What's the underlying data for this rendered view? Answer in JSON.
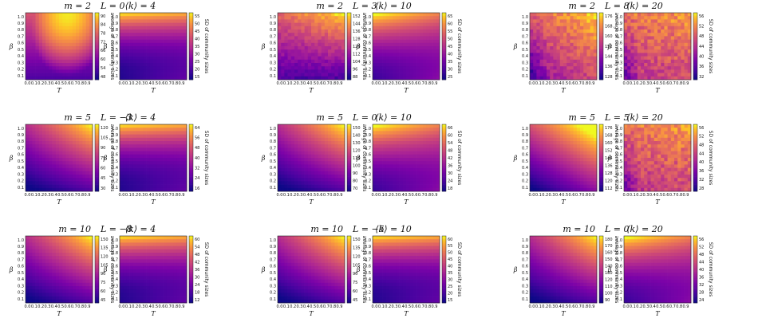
{
  "figure": {
    "x_ticks": [
      "0.0",
      "0.1",
      "0.2",
      "0.3",
      "0.4",
      "0.5",
      "0.6",
      "0.7",
      "0.8",
      "0.9"
    ],
    "y_ticks": [
      "0.1",
      "0.2",
      "0.3",
      "0.4",
      "0.5",
      "0.6",
      "0.7",
      "0.8",
      "0.9",
      "1.0"
    ],
    "xlabel": "T",
    "ylabel": "β",
    "avg_colorbar_label": "average of community sizes",
    "sd_colorbar_label": "SD of community sizes"
  },
  "chart_data": [
    {
      "type": "heatmap",
      "panel": "average",
      "title_left": "m = 2",
      "title_right": "L = 0",
      "cbar_ticks": [
        "48",
        "54",
        "60",
        "66",
        "72",
        "78",
        "84",
        "90"
      ],
      "pattern": "peak-top-center"
    },
    {
      "type": "heatmap",
      "panel": "sd",
      "title": "⟨k⟩ = 4",
      "cbar_ticks": [
        "15",
        "20",
        "25",
        "30",
        "35",
        "40",
        "45",
        "50",
        "55"
      ],
      "pattern": "top-band"
    },
    {
      "type": "heatmap",
      "panel": "average",
      "title_left": "m = 2",
      "title_right": "L = 3",
      "cbar_ticks": [
        "88",
        "96",
        "104",
        "112",
        "120",
        "128",
        "136",
        "144",
        "152"
      ],
      "pattern": "noisy-top"
    },
    {
      "type": "heatmap",
      "panel": "sd",
      "title": "⟨k⟩ = 10",
      "cbar_ticks": [
        "25",
        "30",
        "35",
        "40",
        "45",
        "50",
        "55",
        "60",
        "65"
      ],
      "pattern": "top-left-band"
    },
    {
      "type": "heatmap",
      "panel": "average",
      "title_left": "m = 2",
      "title_right": "L = 8",
      "cbar_ticks": [
        "128",
        "136",
        "144",
        "152",
        "160",
        "168",
        "176"
      ],
      "pattern": "noisy-high"
    },
    {
      "type": "heatmap",
      "panel": "sd",
      "title": "⟨k⟩ = 20",
      "cbar_ticks": [
        "32",
        "36",
        "40",
        "44",
        "48",
        "52",
        "56"
      ],
      "pattern": "noisy-mid"
    },
    {
      "type": "heatmap",
      "panel": "average",
      "title_left": "m = 5",
      "title_right": "L = −3",
      "cbar_ticks": [
        "30",
        "45",
        "60",
        "75",
        "90",
        "105",
        "120"
      ],
      "pattern": "top-right"
    },
    {
      "type": "heatmap",
      "panel": "sd",
      "title": "⟨k⟩ = 4",
      "cbar_ticks": [
        "16",
        "24",
        "32",
        "40",
        "48",
        "56",
        "64"
      ],
      "pattern": "top-band"
    },
    {
      "type": "heatmap",
      "panel": "average",
      "title_left": "m = 5",
      "title_right": "L = 0",
      "cbar_ticks": [
        "70",
        "80",
        "90",
        "100",
        "110",
        "120",
        "130",
        "140",
        "150"
      ],
      "pattern": "top-right"
    },
    {
      "type": "heatmap",
      "panel": "sd",
      "title": "⟨k⟩ = 10",
      "cbar_ticks": [
        "18",
        "24",
        "30",
        "36",
        "42",
        "48",
        "54",
        "60",
        "66"
      ],
      "pattern": "top-left-band"
    },
    {
      "type": "heatmap",
      "panel": "average",
      "title_left": "m = 5",
      "title_right": "L = 5",
      "cbar_ticks": [
        "112",
        "120",
        "128",
        "136",
        "144",
        "152",
        "160",
        "168",
        "176"
      ],
      "pattern": "top-right-high"
    },
    {
      "type": "heatmap",
      "panel": "sd",
      "title": "⟨k⟩ = 20",
      "cbar_ticks": [
        "28",
        "32",
        "36",
        "40",
        "44",
        "48",
        "52",
        "56"
      ],
      "pattern": "noisy-mid"
    },
    {
      "type": "heatmap",
      "panel": "average",
      "title_left": "m = 10",
      "title_right": "L = −8",
      "cbar_ticks": [
        "45",
        "60",
        "75",
        "90",
        "105",
        "120",
        "135",
        "150"
      ],
      "pattern": "top-right"
    },
    {
      "type": "heatmap",
      "panel": "sd",
      "title": "⟨k⟩ = 4",
      "cbar_ticks": [
        "12",
        "18",
        "24",
        "30",
        "36",
        "42",
        "48",
        "54",
        "60"
      ],
      "pattern": "top-band"
    },
    {
      "type": "heatmap",
      "panel": "average",
      "title_left": "m = 10",
      "title_right": "L = −5",
      "cbar_ticks": [
        "45",
        "60",
        "75",
        "90",
        "105",
        "120",
        "135",
        "150"
      ],
      "pattern": "top-right"
    },
    {
      "type": "heatmap",
      "panel": "sd",
      "title": "⟨k⟩ = 10",
      "cbar_ticks": [
        "15",
        "20",
        "25",
        "30",
        "35",
        "40",
        "45",
        "50",
        "55",
        "60"
      ],
      "pattern": "top-band"
    },
    {
      "type": "heatmap",
      "panel": "average",
      "title_left": "m = 10",
      "title_right": "L = 0",
      "cbar_ticks": [
        "90",
        "100",
        "110",
        "120",
        "130",
        "140",
        "150",
        "160",
        "170",
        "180"
      ],
      "pattern": "top-right"
    },
    {
      "type": "heatmap",
      "panel": "sd",
      "title": "⟨k⟩ = 20",
      "cbar_ticks": [
        "24",
        "28",
        "32",
        "36",
        "40",
        "44",
        "48",
        "52",
        "56"
      ],
      "pattern": "top-left-band"
    }
  ]
}
